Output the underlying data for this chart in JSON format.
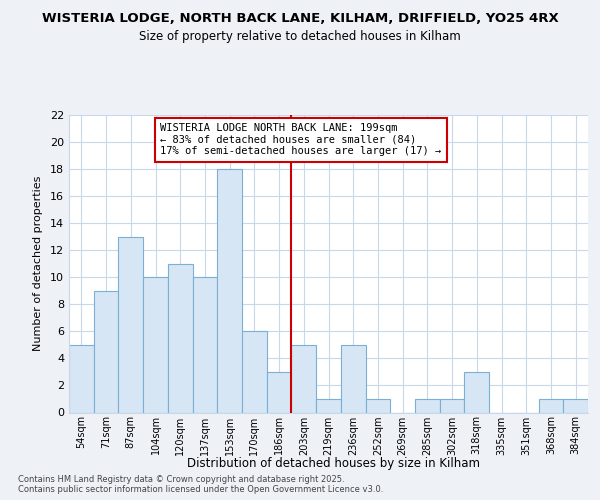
{
  "title": "WISTERIA LODGE, NORTH BACK LANE, KILHAM, DRIFFIELD, YO25 4RX",
  "subtitle": "Size of property relative to detached houses in Kilham",
  "xlabel": "Distribution of detached houses by size in Kilham",
  "ylabel": "Number of detached properties",
  "categories": [
    "54sqm",
    "71sqm",
    "87sqm",
    "104sqm",
    "120sqm",
    "137sqm",
    "153sqm",
    "170sqm",
    "186sqm",
    "203sqm",
    "219sqm",
    "236sqm",
    "252sqm",
    "269sqm",
    "285sqm",
    "302sqm",
    "318sqm",
    "335sqm",
    "351sqm",
    "368sqm",
    "384sqm"
  ],
  "values": [
    5,
    9,
    13,
    10,
    11,
    10,
    18,
    6,
    3,
    5,
    1,
    5,
    1,
    0,
    1,
    1,
    3,
    0,
    0,
    1,
    1
  ],
  "bar_color": "#d6e6f5",
  "bar_edge_color": "#7bafd4",
  "property_line_x": 9,
  "annotation_text": "WISTERIA LODGE NORTH BACK LANE: 199sqm\n← 83% of detached houses are smaller (84)\n17% of semi-detached houses are larger (17) →",
  "annotation_box_color": "#ffffff",
  "annotation_box_edge_color": "#cc0000",
  "line_color": "#cc0000",
  "ylim": [
    0,
    22
  ],
  "yticks": [
    0,
    2,
    4,
    6,
    8,
    10,
    12,
    14,
    16,
    18,
    20,
    22
  ],
  "footer_line1": "Contains HM Land Registry data © Crown copyright and database right 2025.",
  "footer_line2": "Contains public sector information licensed under the Open Government Licence v3.0.",
  "bg_color": "#eef2f7",
  "plot_bg_color": "#ffffff",
  "grid_color": "#c8d8e8"
}
